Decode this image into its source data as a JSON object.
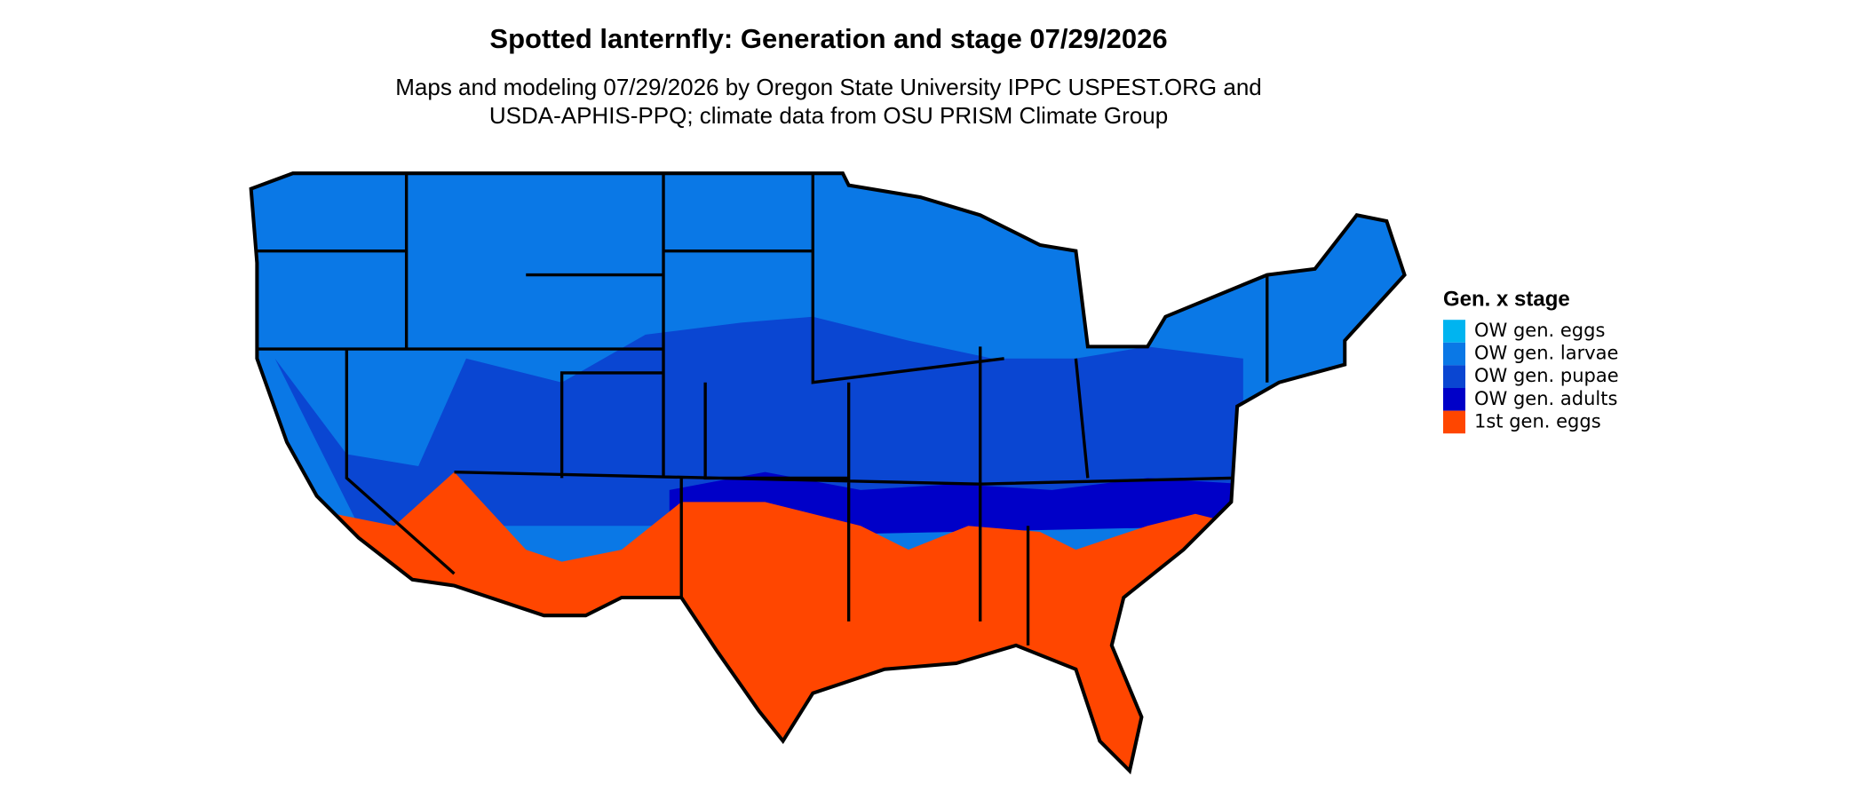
{
  "title": "Spotted lanternfly: Generation and stage 07/29/2026",
  "subtitle": [
    "Maps and modeling 07/29/2026 by Oregon State University IPPC USPEST.ORG and",
    "USDA-APHIS-PPQ; climate data from OSU PRISM Climate Group"
  ],
  "legend": {
    "title": "Gen. x stage",
    "items": [
      {
        "label": "OW gen. eggs",
        "color": "#00b4f0"
      },
      {
        "label": "OW gen. larvae",
        "color": "#0a78e6"
      },
      {
        "label": "OW gen. pupae",
        "color": "#0a46d2"
      },
      {
        "label": "OW gen. adults",
        "color": "#0000c8"
      },
      {
        "label": "1st gen. eggs",
        "color": "#ff4600"
      }
    ]
  }
}
